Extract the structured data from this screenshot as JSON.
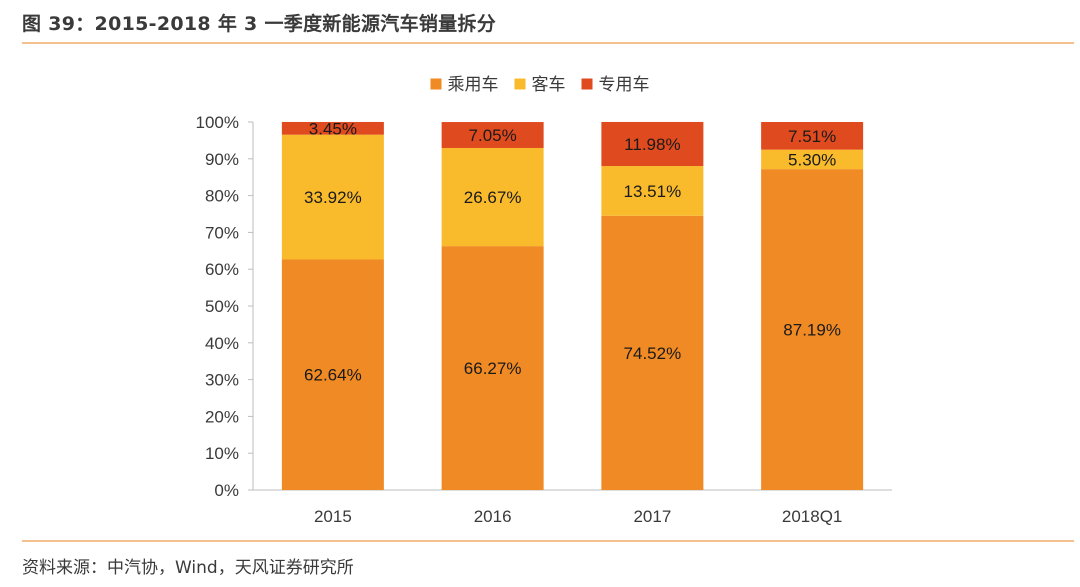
{
  "header": {
    "title": "图 39：2015-2018 年 3 一季度新能源汽车销量拆分"
  },
  "footer": {
    "source": "资料来源：中汽协，Wind，天风证券研究所"
  },
  "chart_data": {
    "type": "bar",
    "stacked": true,
    "categories": [
      "2015",
      "2016",
      "2017",
      "2018Q1"
    ],
    "series": [
      {
        "name": "乘用车",
        "color": "#f08a24",
        "values": [
          62.64,
          66.27,
          74.52,
          87.19
        ],
        "labels": [
          "62.64%",
          "66.27%",
          "74.52%",
          "87.19%"
        ]
      },
      {
        "name": "客车",
        "color": "#f9bb2c",
        "values": [
          33.92,
          26.67,
          13.51,
          5.3
        ],
        "labels": [
          "33.92%",
          "26.67%",
          "13.51%",
          "5.30%"
        ]
      },
      {
        "name": "专用车",
        "color": "#e04a1f",
        "values": [
          3.45,
          7.05,
          11.98,
          7.51
        ],
        "labels": [
          "3.45%",
          "7.05%",
          "11.98%",
          "7.51%"
        ]
      }
    ],
    "ylim": [
      0,
      100
    ],
    "yticks": [
      "0%",
      "10%",
      "20%",
      "30%",
      "40%",
      "50%",
      "60%",
      "70%",
      "80%",
      "90%",
      "100%"
    ],
    "legend_position": "top-center",
    "grid": false
  }
}
